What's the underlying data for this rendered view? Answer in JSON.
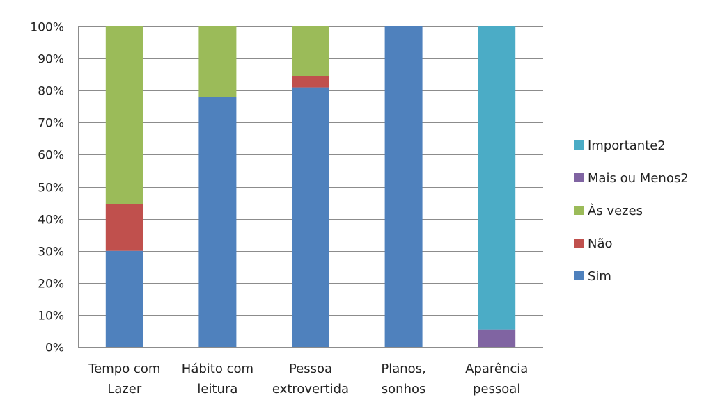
{
  "chart_data": {
    "type": "bar",
    "stacked": "percent",
    "categories": [
      [
        "Tempo com",
        "Lazer"
      ],
      [
        "Hábito com",
        "leitura"
      ],
      [
        "Pessoa",
        "extrovertida"
      ],
      [
        "Planos,",
        "sonhos"
      ],
      [
        "Aparência",
        "pessoal"
      ]
    ],
    "series": [
      {
        "name": "Sim",
        "color": "#4F81BD",
        "values": [
          30,
          78,
          81,
          100,
          0
        ]
      },
      {
        "name": "Não",
        "color": "#C0504D",
        "values": [
          14.5,
          0,
          3.5,
          0,
          0
        ]
      },
      {
        "name": "Às vezes",
        "color": "#9BBB59",
        "values": [
          55.5,
          22,
          15.5,
          0,
          0
        ]
      },
      {
        "name": "Mais ou Menos2",
        "color": "#8064A2",
        "values": [
          0,
          0,
          0,
          0,
          5.5
        ]
      },
      {
        "name": "Importante2",
        "color": "#4BACC6",
        "values": [
          0,
          0,
          0,
          0,
          94.5
        ]
      }
    ],
    "legend_order": [
      "Importante2",
      "Mais ou Menos2",
      "Às vezes",
      "Não",
      "Sim"
    ],
    "yticks": [
      "0%",
      "10%",
      "20%",
      "30%",
      "40%",
      "50%",
      "60%",
      "70%",
      "80%",
      "90%",
      "100%"
    ],
    "ylim": [
      0,
      100
    ],
    "grid": true,
    "legend_position": "right",
    "title": "",
    "xlabel": "",
    "ylabel": ""
  }
}
